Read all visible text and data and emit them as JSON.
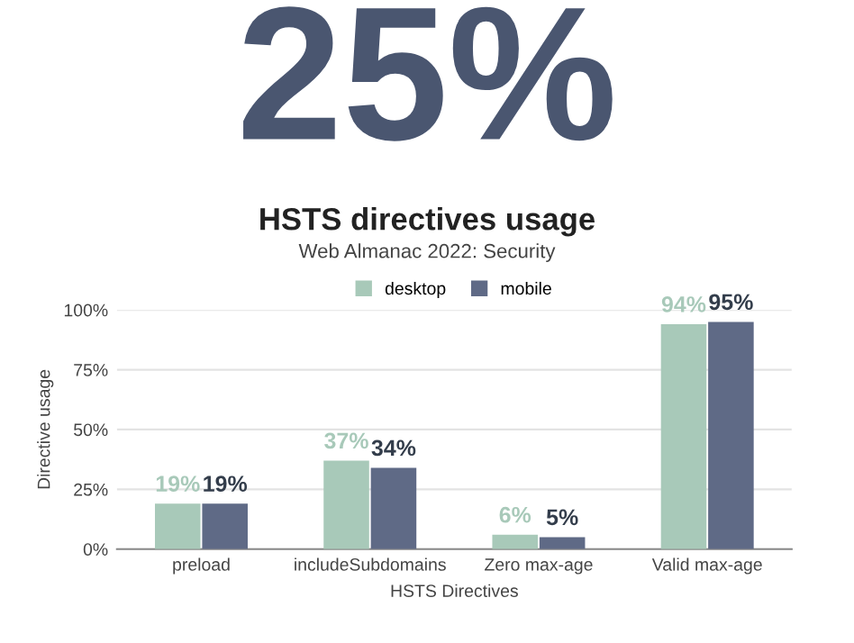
{
  "chart_data": {
    "type": "bar",
    "title": "HSTS directives usage",
    "subtitle": "Web Almanac 2022: Security",
    "annotations": [
      "25%"
    ],
    "xlabel": "HSTS Directives",
    "ylabel": "Directive usage",
    "categories": [
      "preload",
      "includeSubdomains",
      "Zero max-age",
      "Valid max-age"
    ],
    "series": [
      {
        "name": "desktop",
        "color": "#a8c9b9",
        "values": [
          19,
          37,
          6,
          94
        ],
        "value_labels": [
          "19%",
          "37%",
          "6%",
          "94%"
        ]
      },
      {
        "name": "mobile",
        "color": "#5f6a86",
        "values": [
          19,
          34,
          5,
          95
        ],
        "value_labels": [
          "19%",
          "34%",
          "5%",
          "95%"
        ]
      }
    ],
    "ylim": [
      0,
      100
    ],
    "yticks": [
      {
        "value": 0,
        "label": "0%"
      },
      {
        "value": 25,
        "label": "25%"
      },
      {
        "value": 50,
        "label": "50%"
      },
      {
        "value": 75,
        "label": "75%"
      },
      {
        "value": 100,
        "label": "100%"
      }
    ],
    "grid": "y",
    "legend": "top"
  }
}
